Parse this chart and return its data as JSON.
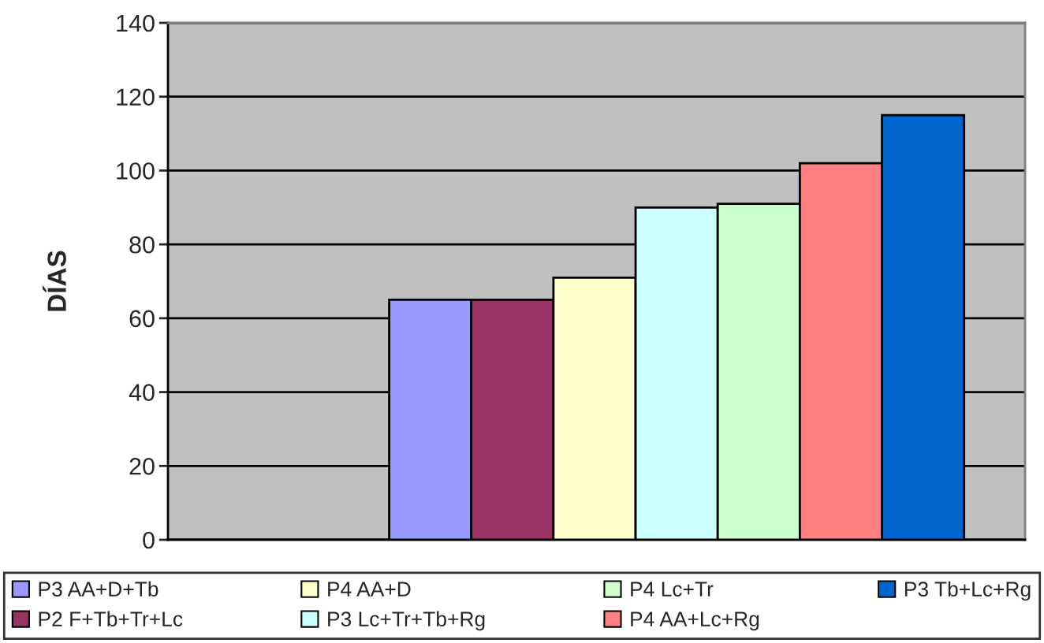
{
  "chart_data": {
    "type": "bar",
    "ylabel": "DÍAS",
    "categories": [
      null
    ],
    "series": [
      {
        "name": "P3 AA+D+Tb",
        "color": "#9999ff",
        "values": [
          65
        ]
      },
      {
        "name": "P2 F+Tb+Tr+Lc",
        "color": "#993366",
        "values": [
          65
        ]
      },
      {
        "name": "P4 AA+D",
        "color": "#ffffcc",
        "values": [
          71
        ]
      },
      {
        "name": "P3 Lc+Tr+Tb+Rg",
        "color": "#ccffff",
        "values": [
          90
        ]
      },
      {
        "name": "P4 Lc+Tr",
        "color": "#ccffcc",
        "values": [
          91
        ]
      },
      {
        "name": "P4 AA+Lc+Rg",
        "color": "#ff8080",
        "values": [
          102
        ]
      },
      {
        "name": "P3 Tb+Lc+Rg",
        "color": "#0066cc",
        "values": [
          115
        ]
      }
    ],
    "ylim": [
      0,
      140
    ],
    "yticks": [
      0,
      20,
      40,
      60,
      80,
      100,
      120,
      140
    ],
    "grid": "y",
    "legend": "bottom"
  }
}
